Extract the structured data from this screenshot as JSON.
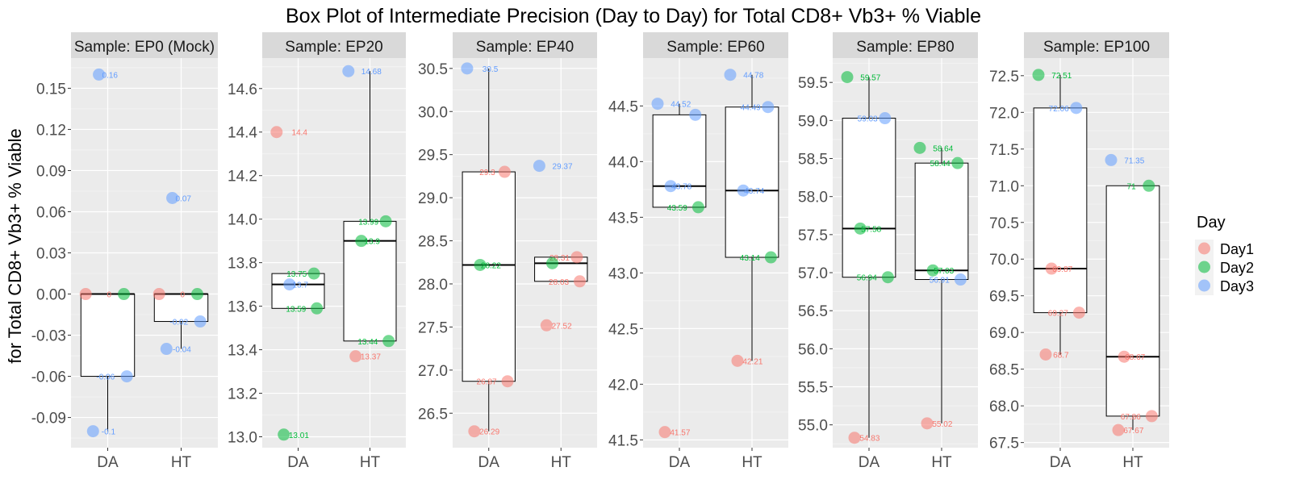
{
  "title": "Box Plot of Intermediate Precision (Day to Day) for Total CD8+ Vb3+ % Viable",
  "ylabel": "for Total CD8+ Vb3+ % Viable",
  "legend": {
    "title": "Day",
    "placement": "right",
    "items": [
      {
        "label": "Day1",
        "color": "#F8766D"
      },
      {
        "label": "Day2",
        "color": "#00BA38"
      },
      {
        "label": "Day3",
        "color": "#619CFF"
      }
    ]
  },
  "chart_data": [
    {
      "type": "box",
      "facet": "Sample: EP0 (Mock)",
      "categories": [
        "DA",
        "HT"
      ],
      "ylim": [
        -0.112,
        0.172
      ],
      "yticks": [
        -0.09,
        -0.06,
        -0.03,
        0.0,
        0.03,
        0.06,
        0.09,
        0.12,
        0.15
      ],
      "ytick_labels": [
        "-0.09",
        "-0.06",
        "-0.03",
        "0.00",
        "0.03",
        "0.06",
        "0.09",
        "0.12",
        "0.15"
      ],
      "boxes": [
        {
          "category": "DA",
          "whisker_low": -0.1,
          "q1": -0.06,
          "median": 0.0,
          "q3": 0.0,
          "whisker_high": 0.0
        },
        {
          "category": "HT",
          "whisker_low": -0.04,
          "q1": -0.02,
          "median": 0.0,
          "q3": 0.0,
          "whisker_high": 0.0
        }
      ],
      "points": [
        {
          "category": "DA",
          "day": "Day1",
          "value": 0.0,
          "label": "0"
        },
        {
          "category": "DA",
          "day": "Day2",
          "value": 0.0,
          "label": ""
        },
        {
          "category": "DA",
          "day": "Day3",
          "value": 0.16,
          "label": "0.16"
        },
        {
          "category": "DA",
          "day": "Day3",
          "value": -0.06,
          "label": "-0.06"
        },
        {
          "category": "DA",
          "day": "Day3",
          "value": -0.1,
          "label": "-0.1"
        },
        {
          "category": "HT",
          "day": "Day1",
          "value": 0.0,
          "label": "0"
        },
        {
          "category": "HT",
          "day": "Day2",
          "value": 0.0,
          "label": ""
        },
        {
          "category": "HT",
          "day": "Day3",
          "value": 0.07,
          "label": "0.07"
        },
        {
          "category": "HT",
          "day": "Day3",
          "value": -0.02,
          "label": "-0.02"
        },
        {
          "category": "HT",
          "day": "Day3",
          "value": -0.04,
          "label": "-0.04"
        }
      ]
    },
    {
      "type": "box",
      "facet": "Sample: EP20",
      "categories": [
        "DA",
        "HT"
      ],
      "ylim": [
        12.95,
        14.74
      ],
      "yticks": [
        13.0,
        13.2,
        13.4,
        13.6,
        13.8,
        14.0,
        14.2,
        14.4,
        14.6
      ],
      "ytick_labels": [
        "13.0",
        "13.2",
        "13.4",
        "13.6",
        "13.8",
        "14.0",
        "14.2",
        "14.4",
        "14.6"
      ],
      "boxes": [
        {
          "category": "DA",
          "whisker_low": 13.59,
          "q1": 13.59,
          "median": 13.7,
          "q3": 13.75,
          "whisker_high": 13.75
        },
        {
          "category": "HT",
          "whisker_low": 13.44,
          "q1": 13.44,
          "median": 13.9,
          "q3": 13.99,
          "whisker_high": 14.68
        }
      ],
      "points": [
        {
          "category": "DA",
          "day": "Day1",
          "value": 14.4,
          "label": "14.4"
        },
        {
          "category": "DA",
          "day": "Day2",
          "value": 13.75,
          "label": "13.75"
        },
        {
          "category": "DA",
          "day": "Day3",
          "value": 13.7,
          "label": "13.7"
        },
        {
          "category": "DA",
          "day": "Day2",
          "value": 13.59,
          "label": "13.59"
        },
        {
          "category": "DA",
          "day": "Day2",
          "value": 13.01,
          "label": "13.01"
        },
        {
          "category": "HT",
          "day": "Day3",
          "value": 14.68,
          "label": "14.68"
        },
        {
          "category": "HT",
          "day": "Day2",
          "value": 13.99,
          "label": "13.99"
        },
        {
          "category": "HT",
          "day": "Day2",
          "value": 13.9,
          "label": "13.9"
        },
        {
          "category": "HT",
          "day": "Day2",
          "value": 13.44,
          "label": "13.44"
        },
        {
          "category": "HT",
          "day": "Day1",
          "value": 13.37,
          "label": "13.37"
        }
      ]
    },
    {
      "type": "box",
      "facet": "Sample: EP40",
      "categories": [
        "DA",
        "HT"
      ],
      "ylim": [
        26.1,
        30.62
      ],
      "yticks": [
        26.5,
        27.0,
        27.5,
        28.0,
        28.5,
        29.0,
        29.5,
        30.0,
        30.5
      ],
      "ytick_labels": [
        "26.5",
        "27.0",
        "27.5",
        "28.0",
        "28.5",
        "29.0",
        "29.5",
        "30.0",
        "30.5"
      ],
      "boxes": [
        {
          "category": "DA",
          "whisker_low": 26.29,
          "q1": 26.87,
          "median": 28.22,
          "q3": 29.3,
          "whisker_high": 30.5
        },
        {
          "category": "HT",
          "whisker_low": 28.03,
          "q1": 28.03,
          "median": 28.24,
          "q3": 28.31,
          "whisker_high": 28.31
        }
      ],
      "points": [
        {
          "category": "DA",
          "day": "Day3",
          "value": 30.5,
          "label": "30.5"
        },
        {
          "category": "DA",
          "day": "Day1",
          "value": 29.3,
          "label": "29.3"
        },
        {
          "category": "DA",
          "day": "Day2",
          "value": 28.22,
          "label": "28.22"
        },
        {
          "category": "DA",
          "day": "Day1",
          "value": 26.87,
          "label": "26.87"
        },
        {
          "category": "DA",
          "day": "Day1",
          "value": 26.29,
          "label": "26.29"
        },
        {
          "category": "HT",
          "day": "Day3",
          "value": 29.37,
          "label": "29.37"
        },
        {
          "category": "HT",
          "day": "Day1",
          "value": 28.31,
          "label": "28.31"
        },
        {
          "category": "HT",
          "day": "Day2",
          "value": 28.24,
          "label": ""
        },
        {
          "category": "HT",
          "day": "Day1",
          "value": 28.03,
          "label": "28.03"
        },
        {
          "category": "HT",
          "day": "Day1",
          "value": 27.52,
          "label": "27.52"
        }
      ]
    },
    {
      "type": "box",
      "facet": "Sample: EP60",
      "categories": [
        "DA",
        "HT"
      ],
      "ylim": [
        41.43,
        44.93
      ],
      "yticks": [
        41.5,
        42.0,
        42.5,
        43.0,
        43.5,
        44.0,
        44.5
      ],
      "ytick_labels": [
        "41.5",
        "42.0",
        "42.5",
        "43.0",
        "43.5",
        "44.0",
        "44.5"
      ],
      "boxes": [
        {
          "category": "DA",
          "whisker_low": 43.59,
          "q1": 43.59,
          "median": 43.78,
          "q3": 44.42,
          "whisker_high": 44.52
        },
        {
          "category": "HT",
          "whisker_low": 42.21,
          "q1": 43.14,
          "median": 43.74,
          "q3": 44.49,
          "whisker_high": 44.78
        }
      ],
      "points": [
        {
          "category": "DA",
          "day": "Day3",
          "value": 44.52,
          "label": "44.52"
        },
        {
          "category": "DA",
          "day": "Day3",
          "value": 44.42,
          "label": ""
        },
        {
          "category": "DA",
          "day": "Day3",
          "value": 43.78,
          "label": "43.78"
        },
        {
          "category": "DA",
          "day": "Day2",
          "value": 43.59,
          "label": "43.59"
        },
        {
          "category": "DA",
          "day": "Day1",
          "value": 41.57,
          "label": "41.57"
        },
        {
          "category": "HT",
          "day": "Day3",
          "value": 44.78,
          "label": "44.78"
        },
        {
          "category": "HT",
          "day": "Day3",
          "value": 44.49,
          "label": "44.49"
        },
        {
          "category": "HT",
          "day": "Day3",
          "value": 43.74,
          "label": "43.74"
        },
        {
          "category": "HT",
          "day": "Day2",
          "value": 43.14,
          "label": "43.14"
        },
        {
          "category": "HT",
          "day": "Day1",
          "value": 42.21,
          "label": "42.21"
        }
      ]
    },
    {
      "type": "box",
      "facet": "Sample: EP80",
      "categories": [
        "DA",
        "HT"
      ],
      "ylim": [
        54.7,
        59.82
      ],
      "yticks": [
        55.0,
        55.5,
        56.0,
        56.5,
        57.0,
        57.5,
        58.0,
        58.5,
        59.0,
        59.5
      ],
      "ytick_labels": [
        "55.0",
        "55.5",
        "56.0",
        "56.5",
        "57.0",
        "57.5",
        "58.0",
        "58.5",
        "59.0",
        "59.5"
      ],
      "boxes": [
        {
          "category": "DA",
          "whisker_low": 54.83,
          "q1": 56.94,
          "median": 57.58,
          "q3": 59.03,
          "whisker_high": 59.57
        },
        {
          "category": "HT",
          "whisker_low": 55.02,
          "q1": 56.91,
          "median": 57.03,
          "q3": 58.44,
          "whisker_high": 58.64
        }
      ],
      "points": [
        {
          "category": "DA",
          "day": "Day2",
          "value": 59.57,
          "label": "59.57"
        },
        {
          "category": "DA",
          "day": "Day3",
          "value": 59.03,
          "label": "59.03"
        },
        {
          "category": "DA",
          "day": "Day2",
          "value": 57.58,
          "label": "57.58"
        },
        {
          "category": "DA",
          "day": "Day2",
          "value": 56.94,
          "label": "56.94"
        },
        {
          "category": "DA",
          "day": "Day1",
          "value": 54.83,
          "label": "54.83"
        },
        {
          "category": "HT",
          "day": "Day2",
          "value": 58.64,
          "label": "58.64"
        },
        {
          "category": "HT",
          "day": "Day2",
          "value": 58.44,
          "label": "58.44"
        },
        {
          "category": "HT",
          "day": "Day2",
          "value": 57.03,
          "label": "57.03"
        },
        {
          "category": "HT",
          "day": "Day3",
          "value": 56.91,
          "label": "56.91"
        },
        {
          "category": "HT",
          "day": "Day1",
          "value": 55.02,
          "label": "55.02"
        }
      ]
    },
    {
      "type": "box",
      "facet": "Sample: EP100",
      "categories": [
        "DA",
        "HT"
      ],
      "ylim": [
        67.43,
        72.74
      ],
      "yticks": [
        67.5,
        68.0,
        68.5,
        69.0,
        69.5,
        70.0,
        70.5,
        71.0,
        71.5,
        72.0,
        72.5
      ],
      "ytick_labels": [
        "67.5",
        "68.0",
        "68.5",
        "69.0",
        "69.5",
        "70.0",
        "70.5",
        "71.0",
        "71.5",
        "72.0",
        "72.5"
      ],
      "boxes": [
        {
          "category": "DA",
          "whisker_low": 68.7,
          "q1": 69.27,
          "median": 69.87,
          "q3": 72.06,
          "whisker_high": 72.51
        },
        {
          "category": "HT",
          "whisker_low": 67.67,
          "q1": 67.86,
          "median": 68.67,
          "q3": 71.0,
          "whisker_high": 71.0
        }
      ],
      "points": [
        {
          "category": "DA",
          "day": "Day2",
          "value": 72.51,
          "label": "72.51"
        },
        {
          "category": "DA",
          "day": "Day3",
          "value": 72.06,
          "label": "72.06"
        },
        {
          "category": "DA",
          "day": "Day1",
          "value": 69.87,
          "label": "69.87"
        },
        {
          "category": "DA",
          "day": "Day1",
          "value": 69.27,
          "label": "69.27"
        },
        {
          "category": "DA",
          "day": "Day1",
          "value": 68.7,
          "label": "68.7"
        },
        {
          "category": "HT",
          "day": "Day3",
          "value": 71.35,
          "label": "71.35"
        },
        {
          "category": "HT",
          "day": "Day2",
          "value": 71.0,
          "label": "71"
        },
        {
          "category": "HT",
          "day": "Day1",
          "value": 68.67,
          "label": "68.67"
        },
        {
          "category": "HT",
          "day": "Day1",
          "value": 67.86,
          "label": "67.86"
        },
        {
          "category": "HT",
          "day": "Day1",
          "value": 67.67,
          "label": "67.67"
        }
      ]
    }
  ]
}
